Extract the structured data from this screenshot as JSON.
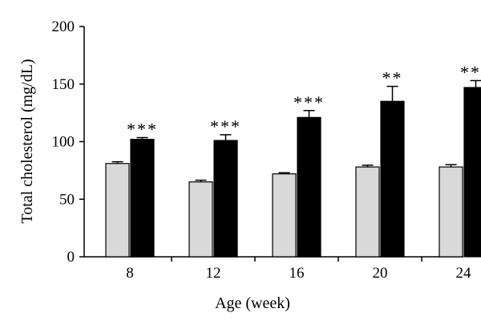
{
  "chart_data": {
    "type": "bar",
    "title": "",
    "xlabel": "Age (week)",
    "ylabel": "Total cholesterol (mg/dL)",
    "categories": [
      "8",
      "12",
      "16",
      "20",
      "24"
    ],
    "ylim": [
      0,
      200
    ],
    "yticks": [
      0,
      50,
      100,
      150,
      200
    ],
    "grid": false,
    "legend": "none",
    "series": [
      {
        "values": [
          81,
          65,
          72,
          78,
          78
        ],
        "errors": [
          1.5,
          1.5,
          1,
          1.5,
          2
        ],
        "color": "#d9d9d9"
      },
      {
        "values": [
          102,
          101,
          121,
          135,
          147
        ],
        "errors": [
          1.5,
          5,
          6,
          13,
          6
        ],
        "color": "#000000"
      }
    ],
    "annotations": [
      "***",
      "***",
      "***",
      "**",
      "***"
    ]
  }
}
